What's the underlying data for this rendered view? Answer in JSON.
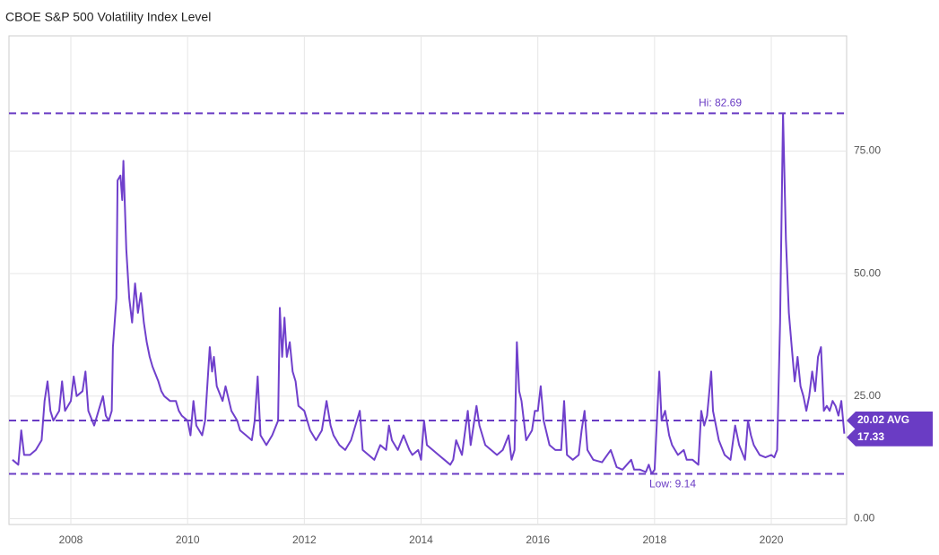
{
  "chart_data": {
    "type": "line",
    "title": "CBOE S&P 500 Volatility Index Level",
    "xlim": [
      2006.94,
      2021.29
    ],
    "xticks": [
      2008,
      2010,
      2012,
      2014,
      2016,
      2018,
      2020
    ],
    "ylim": [
      -1.2,
      98.5
    ],
    "yticks": [
      {
        "value": 0,
        "label": "0.00"
      },
      {
        "value": 25,
        "label": "25.00"
      },
      {
        "value": 50,
        "label": "50.00"
      },
      {
        "value": 75,
        "label": "75.00"
      }
    ],
    "grid": true,
    "reference_lines": [
      {
        "value": 82.69,
        "label": "Hi: 82.69"
      },
      {
        "value": 9.14,
        "label": "Low: 9.14"
      },
      {
        "value": 20.02,
        "label": "20.02 AVG"
      }
    ],
    "reference_color": "#6a3cc4",
    "series": [
      {
        "color": "#7040cc",
        "x": [
          2007.0,
          2007.1,
          2007.15,
          2007.2,
          2007.3,
          2007.4,
          2007.5,
          2007.55,
          2007.6,
          2007.65,
          2007.7,
          2007.8,
          2007.85,
          2007.9,
          2008.0,
          2008.05,
          2008.1,
          2008.2,
          2008.25,
          2008.3,
          2008.4,
          2008.5,
          2008.55,
          2008.6,
          2008.65,
          2008.7,
          2008.72,
          2008.78,
          2008.8,
          2008.85,
          2008.88,
          2008.9,
          2008.95,
          2009.0,
          2009.05,
          2009.1,
          2009.15,
          2009.2,
          2009.25,
          2009.3,
          2009.35,
          2009.4,
          2009.5,
          2009.55,
          2009.6,
          2009.7,
          2009.8,
          2009.85,
          2009.9,
          2010.0,
          2010.05,
          2010.1,
          2010.15,
          2010.25,
          2010.3,
          2010.38,
          2010.42,
          2010.45,
          2010.5,
          2010.6,
          2010.65,
          2010.75,
          2010.85,
          2010.9,
          2011.0,
          2011.1,
          2011.15,
          2011.2,
          2011.25,
          2011.35,
          2011.45,
          2011.55,
          2011.58,
          2011.62,
          2011.66,
          2011.7,
          2011.75,
          2011.8,
          2011.85,
          2011.9,
          2012.0,
          2012.1,
          2012.2,
          2012.3,
          2012.38,
          2012.45,
          2012.5,
          2012.6,
          2012.7,
          2012.8,
          2012.85,
          2012.95,
          2013.0,
          2013.1,
          2013.2,
          2013.3,
          2013.4,
          2013.45,
          2013.5,
          2013.6,
          2013.7,
          2013.8,
          2013.85,
          2013.95,
          2014.0,
          2014.05,
          2014.1,
          2014.2,
          2014.3,
          2014.4,
          2014.5,
          2014.55,
          2014.6,
          2014.7,
          2014.8,
          2014.85,
          2014.95,
          2015.0,
          2015.1,
          2015.2,
          2015.3,
          2015.4,
          2015.5,
          2015.55,
          2015.6,
          2015.64,
          2015.68,
          2015.72,
          2015.8,
          2015.9,
          2015.95,
          2016.0,
          2016.05,
          2016.1,
          2016.2,
          2016.3,
          2016.4,
          2016.45,
          2016.5,
          2016.6,
          2016.7,
          2016.75,
          2016.8,
          2016.85,
          2016.95,
          2017.1,
          2017.25,
          2017.35,
          2017.45,
          2017.6,
          2017.65,
          2017.75,
          2017.85,
          2017.9,
          2017.95,
          2018.0,
          2018.08,
          2018.12,
          2018.18,
          2018.25,
          2018.3,
          2018.4,
          2018.5,
          2018.55,
          2018.65,
          2018.75,
          2018.8,
          2018.85,
          2018.9,
          2018.97,
          2019.0,
          2019.1,
          2019.2,
          2019.3,
          2019.38,
          2019.45,
          2019.55,
          2019.6,
          2019.65,
          2019.7,
          2019.8,
          2019.9,
          2020.0,
          2020.05,
          2020.1,
          2020.15,
          2020.18,
          2020.2,
          2020.25,
          2020.3,
          2020.35,
          2020.4,
          2020.45,
          2020.5,
          2020.55,
          2020.6,
          2020.65,
          2020.7,
          2020.75,
          2020.8,
          2020.85,
          2020.9,
          2020.95,
          2021.0,
          2021.05,
          2021.1,
          2021.15,
          2021.2,
          2021.25
        ],
        "values": [
          12,
          11,
          18,
          13,
          13,
          14,
          16,
          24,
          28,
          22,
          20,
          22,
          28,
          22,
          24,
          29,
          25,
          26,
          30,
          22,
          19,
          23,
          25,
          21,
          20,
          22,
          35,
          45,
          69,
          70,
          65,
          73,
          55,
          45,
          40,
          48,
          42,
          46,
          40,
          36,
          33,
          31,
          28,
          26,
          25,
          24,
          24,
          22,
          21,
          20,
          17,
          24,
          19,
          17,
          20,
          35,
          30,
          33,
          27,
          24,
          27,
          22,
          20,
          18,
          17,
          16,
          20,
          29,
          17,
          15,
          17,
          20,
          43,
          33,
          41,
          33,
          36,
          30,
          28,
          23,
          22,
          18,
          16,
          18,
          24,
          19,
          17,
          15,
          14,
          16,
          18,
          22,
          14,
          13,
          12,
          15,
          14,
          19,
          16,
          14,
          17,
          14,
          13,
          14,
          12,
          20,
          15,
          14,
          13,
          12,
          11,
          12,
          16,
          13,
          22,
          15,
          23,
          19,
          15,
          14,
          13,
          14,
          17,
          12,
          14,
          36,
          26,
          24,
          16,
          18,
          22,
          22,
          27,
          20,
          15,
          14,
          14,
          24,
          13,
          12,
          13,
          18,
          22,
          14,
          12,
          11.5,
          14,
          10.5,
          10,
          12,
          10,
          10,
          9.5,
          11,
          9.14,
          10,
          30,
          20,
          22,
          17,
          15,
          13,
          14,
          12,
          12,
          11,
          22,
          19,
          21,
          30,
          22,
          16,
          13,
          12,
          19,
          15,
          12,
          20,
          17,
          15,
          13,
          12.5,
          13,
          12.5,
          14,
          40,
          66,
          82.69,
          57,
          42,
          35,
          28,
          33,
          27,
          25,
          22,
          25,
          30,
          26,
          33,
          35,
          22,
          23,
          22,
          24,
          23,
          21,
          24,
          17.33
        ]
      }
    ]
  }
}
